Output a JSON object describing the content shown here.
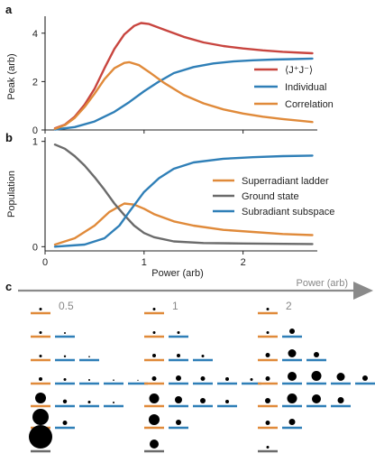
{
  "colors": {
    "red": "#c8453f",
    "blue": "#2f7fb7",
    "orange": "#e08a3a",
    "gray": "#6b6b6b",
    "arrow": "#8a8a8a"
  },
  "chart_data": [
    {
      "type": "line",
      "panel_label": "a",
      "ylabel": "Peak (arb)",
      "xlim": [
        0,
        2.75
      ],
      "ylim": [
        0,
        4.7
      ],
      "yticks": [
        "0",
        "2",
        "4"
      ],
      "ytick_values": [
        0,
        2,
        4
      ],
      "legend_position": "right",
      "series": [
        {
          "name": "⟨J⁺J⁻⟩",
          "color": "#c8453f",
          "points": [
            [
              0.1,
              0.07
            ],
            [
              0.2,
              0.22
            ],
            [
              0.3,
              0.55
            ],
            [
              0.4,
              1.05
            ],
            [
              0.5,
              1.7
            ],
            [
              0.6,
              2.55
            ],
            [
              0.7,
              3.35
            ],
            [
              0.8,
              3.95
            ],
            [
              0.9,
              4.3
            ],
            [
              0.97,
              4.42
            ],
            [
              1.05,
              4.38
            ],
            [
              1.2,
              4.15
            ],
            [
              1.4,
              3.85
            ],
            [
              1.6,
              3.62
            ],
            [
              1.8,
              3.47
            ],
            [
              2.0,
              3.37
            ],
            [
              2.2,
              3.29
            ],
            [
              2.4,
              3.23
            ],
            [
              2.6,
              3.19
            ],
            [
              2.7,
              3.17
            ]
          ]
        },
        {
          "name": "Individual",
          "color": "#2f7fb7",
          "points": [
            [
              0.1,
              0.02
            ],
            [
              0.3,
              0.12
            ],
            [
              0.5,
              0.35
            ],
            [
              0.7,
              0.75
            ],
            [
              0.85,
              1.15
            ],
            [
              1.0,
              1.6
            ],
            [
              1.15,
              2.0
            ],
            [
              1.3,
              2.35
            ],
            [
              1.5,
              2.6
            ],
            [
              1.7,
              2.75
            ],
            [
              1.9,
              2.83
            ],
            [
              2.1,
              2.88
            ],
            [
              2.3,
              2.91
            ],
            [
              2.5,
              2.93
            ],
            [
              2.7,
              2.95
            ]
          ]
        },
        {
          "name": "Correlation",
          "color": "#e08a3a",
          "points": [
            [
              0.1,
              0.05
            ],
            [
              0.2,
              0.2
            ],
            [
              0.3,
              0.5
            ],
            [
              0.4,
              0.95
            ],
            [
              0.5,
              1.5
            ],
            [
              0.6,
              2.1
            ],
            [
              0.7,
              2.55
            ],
            [
              0.8,
              2.77
            ],
            [
              0.85,
              2.8
            ],
            [
              0.95,
              2.68
            ],
            [
              1.05,
              2.4
            ],
            [
              1.2,
              1.95
            ],
            [
              1.4,
              1.45
            ],
            [
              1.6,
              1.1
            ],
            [
              1.8,
              0.85
            ],
            [
              2.0,
              0.68
            ],
            [
              2.2,
              0.55
            ],
            [
              2.4,
              0.45
            ],
            [
              2.6,
              0.37
            ],
            [
              2.7,
              0.33
            ]
          ]
        }
      ]
    },
    {
      "type": "line",
      "panel_label": "b",
      "ylabel": "Population",
      "xlabel": "Power (arb)",
      "xlim": [
        0,
        2.75
      ],
      "ylim": [
        -0.04,
        1.04
      ],
      "xticks": [
        "0",
        "1",
        "2"
      ],
      "xtick_values": [
        0,
        1,
        2
      ],
      "yticks": [
        "0",
        "1"
      ],
      "ytick_values": [
        0,
        1
      ],
      "legend_position": "right",
      "series": [
        {
          "name": "Superradiant ladder",
          "color": "#e08a3a",
          "points": [
            [
              0.1,
              0.02
            ],
            [
              0.3,
              0.08
            ],
            [
              0.5,
              0.2
            ],
            [
              0.65,
              0.33
            ],
            [
              0.8,
              0.41
            ],
            [
              0.9,
              0.4
            ],
            [
              1.0,
              0.36
            ],
            [
              1.1,
              0.31
            ],
            [
              1.3,
              0.24
            ],
            [
              1.5,
              0.2
            ],
            [
              1.8,
              0.16
            ],
            [
              2.1,
              0.14
            ],
            [
              2.4,
              0.12
            ],
            [
              2.7,
              0.11
            ]
          ]
        },
        {
          "name": "Ground state",
          "color": "#6b6b6b",
          "points": [
            [
              0.1,
              0.97
            ],
            [
              0.2,
              0.93
            ],
            [
              0.3,
              0.86
            ],
            [
              0.4,
              0.77
            ],
            [
              0.5,
              0.66
            ],
            [
              0.6,
              0.54
            ],
            [
              0.7,
              0.41
            ],
            [
              0.8,
              0.3
            ],
            [
              0.9,
              0.2
            ],
            [
              1.0,
              0.13
            ],
            [
              1.1,
              0.09
            ],
            [
              1.3,
              0.05
            ],
            [
              1.6,
              0.035
            ],
            [
              2.0,
              0.03
            ],
            [
              2.7,
              0.025
            ]
          ]
        },
        {
          "name": "Subradiant subspace",
          "color": "#2f7fb7",
          "points": [
            [
              0.1,
              0.0
            ],
            [
              0.4,
              0.02
            ],
            [
              0.6,
              0.08
            ],
            [
              0.75,
              0.2
            ],
            [
              0.85,
              0.33
            ],
            [
              1.0,
              0.52
            ],
            [
              1.15,
              0.65
            ],
            [
              1.3,
              0.74
            ],
            [
              1.5,
              0.8
            ],
            [
              1.8,
              0.835
            ],
            [
              2.1,
              0.85
            ],
            [
              2.4,
              0.86
            ],
            [
              2.7,
              0.865
            ]
          ]
        }
      ]
    }
  ],
  "panel_c": {
    "label": "c",
    "arrow_label": "Power (arb)",
    "groups": [
      {
        "label": "0.5",
        "rows": [
          [
            [
              "o",
              1.5
            ]
          ],
          [
            [
              "o",
              1.5
            ],
            [
              "b",
              1
            ]
          ],
          [
            [
              "o",
              1.5
            ],
            [
              "b",
              1.2
            ],
            [
              "b",
              0.8
            ]
          ],
          [
            [
              "o",
              2
            ],
            [
              "b",
              1.5
            ],
            [
              "b",
              1
            ],
            [
              "b",
              0.8
            ],
            [
              "b",
              0.6
            ]
          ],
          [
            [
              "o",
              6
            ],
            [
              "b",
              2.2
            ],
            [
              "b",
              1.5
            ],
            [
              "b",
              1
            ]
          ],
          [
            [
              "o",
              9
            ],
            [
              "b",
              2.5
            ]
          ],
          [
            [
              "g",
              13
            ]
          ]
        ]
      },
      {
        "label": "1",
        "rows": [
          [
            [
              "o",
              1.5
            ]
          ],
          [
            [
              "o",
              1.5
            ],
            [
              "b",
              1.5
            ]
          ],
          [
            [
              "o",
              2
            ],
            [
              "b",
              2
            ],
            [
              "b",
              1.5
            ]
          ],
          [
            [
              "o",
              2.5
            ],
            [
              "b",
              3
            ],
            [
              "b",
              2.5
            ],
            [
              "b",
              2
            ],
            [
              "b",
              1.5
            ]
          ],
          [
            [
              "o",
              5.5
            ],
            [
              "b",
              4
            ],
            [
              "b",
              3
            ],
            [
              "b",
              2
            ]
          ],
          [
            [
              "o",
              6
            ],
            [
              "b",
              3
            ]
          ],
          [
            [
              "g",
              5
            ]
          ]
        ]
      },
      {
        "label": "2",
        "rows": [
          [
            [
              "o",
              1.5
            ]
          ],
          [
            [
              "o",
              1.5
            ],
            [
              "b",
              3
            ]
          ],
          [
            [
              "o",
              2.5
            ],
            [
              "b",
              4.5
            ],
            [
              "b",
              3
            ]
          ],
          [
            [
              "o",
              2.5
            ],
            [
              "b",
              5
            ],
            [
              "b",
              5.5
            ],
            [
              "b",
              4.5
            ],
            [
              "b",
              3
            ]
          ],
          [
            [
              "o",
              3
            ],
            [
              "b",
              5.5
            ],
            [
              "b",
              5
            ],
            [
              "b",
              3.5
            ]
          ],
          [
            [
              "o",
              2.5
            ],
            [
              "b",
              3.5
            ]
          ],
          [
            [
              "g",
              1.5
            ]
          ]
        ]
      }
    ]
  }
}
